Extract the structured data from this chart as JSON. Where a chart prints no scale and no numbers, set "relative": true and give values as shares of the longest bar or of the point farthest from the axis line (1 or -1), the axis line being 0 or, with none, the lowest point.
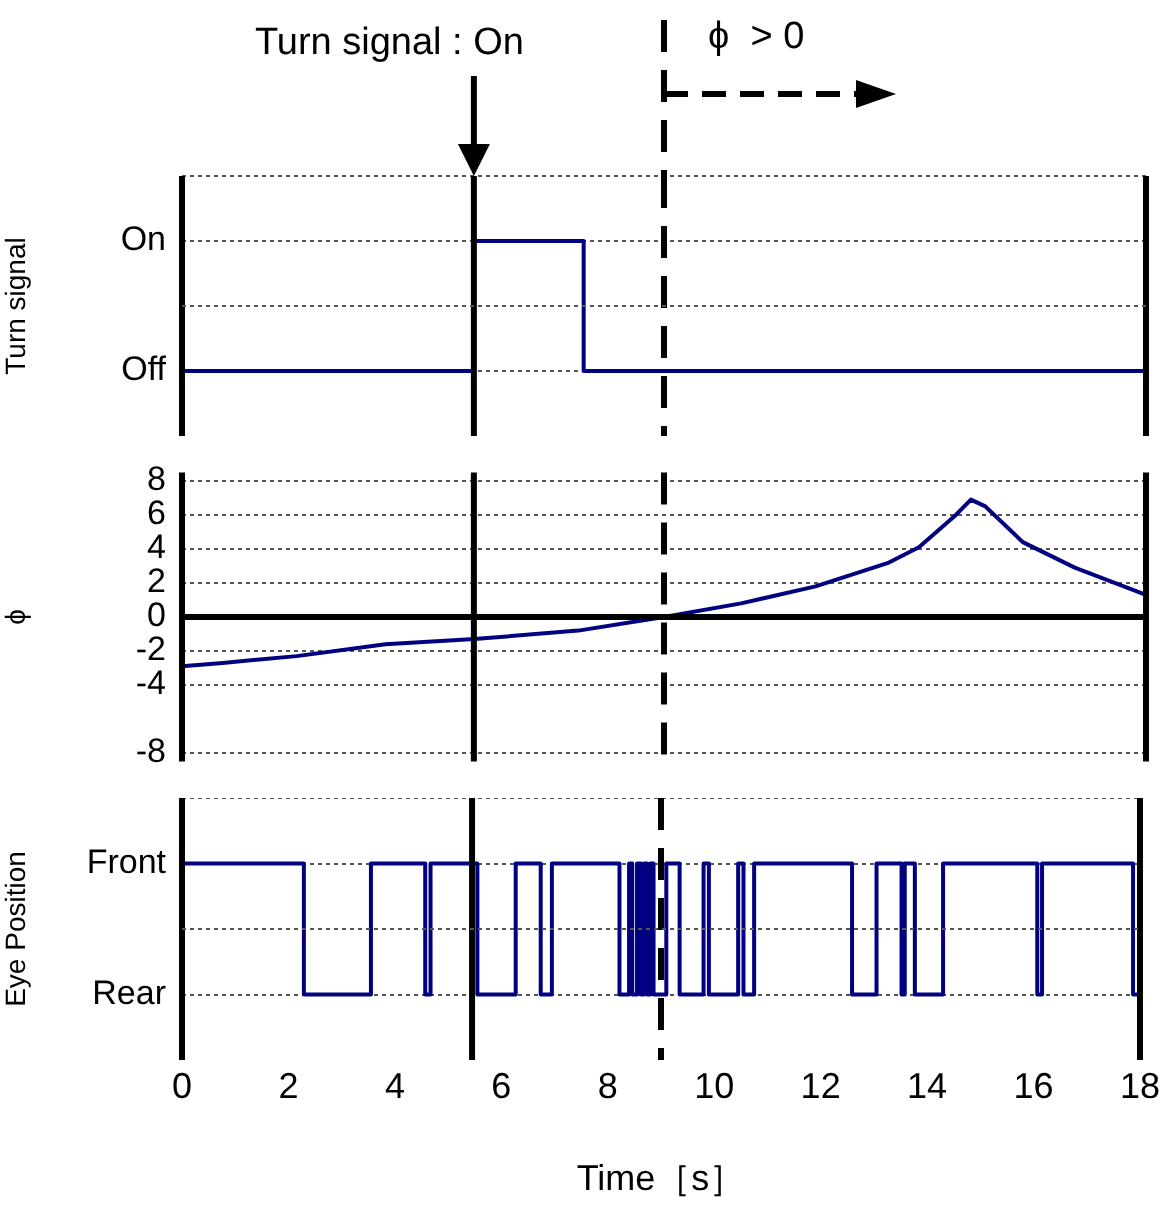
{
  "chart_data": [
    {
      "type": "step",
      "ylabel": "Turn signal",
      "relative": true,
      "x": [
        0,
        5.45,
        7.5,
        18
      ],
      "values": [
        0,
        1,
        0,
        0
      ],
      "color": "#000080",
      "xlim": [
        0,
        18
      ],
      "grid": "y",
      "tick_labels": "y",
      "ref_lines": [
        {
          "axis": "x",
          "value": 5.45,
          "color": "#000000",
          "line_style": "solid"
        },
        {
          "axis": "x",
          "value": 9.0,
          "color": "#000000",
          "line_style": "dashed"
        },
        {
          "axis": "y",
          "value": 0.5,
          "color": "#555555",
          "line_style": "dotted"
        }
      ],
      "annotations": [
        "Turn signal : On",
        "ϕ  > 0",
        "On",
        "Off"
      ]
    },
    {
      "type": "line",
      "ylabel": "ϕ",
      "x": [
        0,
        0.76,
        2.14,
        3.8,
        5.46,
        7.4,
        9.0,
        10.44,
        11.83,
        13.2,
        13.76,
        14.45,
        14.73,
        15.0,
        15.7,
        16.67,
        18
      ],
      "values": [
        -2.9,
        -2.7,
        -2.3,
        -1.6,
        -1.3,
        -0.8,
        0,
        0.8,
        1.8,
        3.2,
        4.1,
        6.0,
        6.9,
        6.5,
        4.4,
        2.9,
        1.3
      ],
      "color": "#000080",
      "xlim": [
        0,
        18
      ],
      "ylim": [
        -8.5,
        8.5
      ],
      "yticks": [
        8,
        6,
        4,
        2,
        0,
        -2,
        -4,
        -8
      ],
      "grid": "y",
      "tick_labels": "y",
      "ref_lines": [
        {
          "axis": "y",
          "value": 0,
          "color": "#000000",
          "line_style": "solid"
        },
        {
          "axis": "x",
          "value": 5.45,
          "color": "#000000",
          "line_style": "solid"
        },
        {
          "axis": "x",
          "value": 9.0,
          "color": "#000000",
          "line_style": "dashed"
        }
      ]
    },
    {
      "type": "step",
      "ylabel": "Eye Position",
      "xlabel": "Time［s］",
      "relative": true,
      "x": [
        0,
        2.29,
        3.55,
        4.57,
        4.67,
        5.55,
        6.27,
        6.74,
        6.95,
        8.22,
        8.4,
        8.46,
        8.55,
        8.62,
        8.68,
        8.74,
        8.8,
        8.86,
        9.1,
        9.35,
        9.8,
        9.9,
        10.45,
        10.55,
        10.75,
        12.59,
        13.05,
        13.52,
        13.58,
        13.77,
        14.3,
        16.07,
        16.16,
        17.87,
        18
      ],
      "values": [
        1,
        0,
        1,
        0,
        1,
        0,
        1,
        0,
        1,
        0,
        1,
        0,
        1,
        0,
        1,
        0,
        1,
        0,
        1,
        0,
        1,
        0,
        1,
        0,
        1,
        0,
        1,
        0,
        1,
        0,
        1,
        0,
        1,
        0,
        0
      ],
      "color": "#000080",
      "xlim": [
        0,
        18
      ],
      "xticks": [
        0,
        2,
        4,
        6,
        8,
        10,
        12,
        14,
        16,
        18
      ],
      "grid": "y",
      "ref_lines": [
        {
          "axis": "x",
          "value": 5.45,
          "color": "#000000",
          "line_style": "solid"
        },
        {
          "axis": "x",
          "value": 9.0,
          "color": "#000000",
          "line_style": "dashed"
        },
        {
          "axis": "y",
          "value": 0.5,
          "color": "#555555",
          "line_style": "dotted"
        }
      ],
      "annotations": [
        "Front",
        "Rear"
      ]
    }
  ]
}
